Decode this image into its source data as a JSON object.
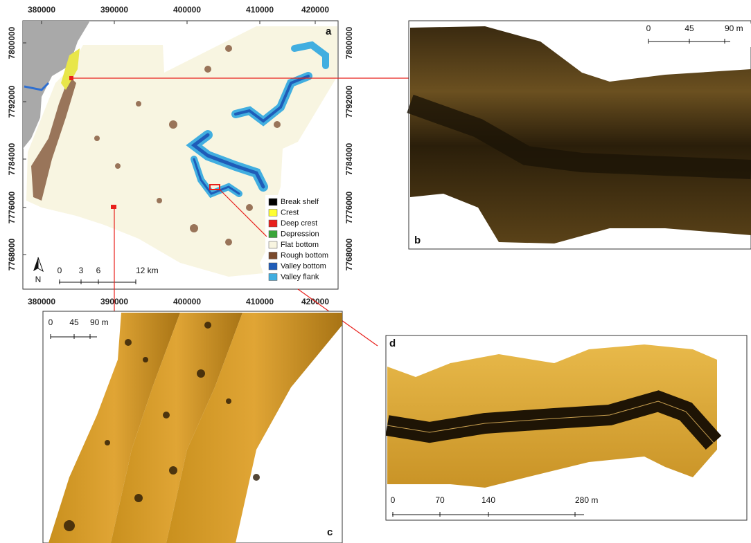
{
  "panel_a": {
    "label": "a",
    "xticks": [
      380000,
      390000,
      400000,
      410000,
      420000
    ],
    "yticks": [
      7800000,
      7792000,
      7784000,
      7776000,
      7768000
    ],
    "legend": [
      {
        "name": "Break shelf",
        "color": "#000000"
      },
      {
        "name": "Crest",
        "color": "#ffff33"
      },
      {
        "name": "Deep crest",
        "color": "#e8201c"
      },
      {
        "name": "Depression",
        "color": "#3aa63a"
      },
      {
        "name": "Flat bottom",
        "color": "#f8f5e1"
      },
      {
        "name": "Rough bottom",
        "color": "#7a4a2c"
      },
      {
        "name": "Valley bottom",
        "color": "#1f5cb8"
      },
      {
        "name": "Valley flank",
        "color": "#41aee0"
      }
    ],
    "scale": [
      "0",
      "3",
      "6",
      "12 km"
    ],
    "north": "N"
  },
  "panel_b": {
    "label": "b",
    "scale": [
      "0",
      "45",
      "90 m"
    ]
  },
  "panel_c": {
    "label": "c",
    "scale": [
      "0",
      "45",
      "90 m"
    ]
  },
  "panel_d": {
    "label": "d",
    "scale": [
      "0",
      "70",
      "140",
      "280 m"
    ]
  }
}
